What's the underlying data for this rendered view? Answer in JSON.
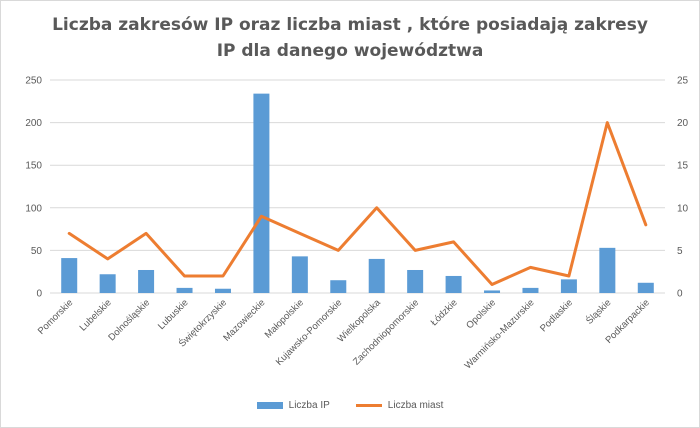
{
  "chart_data": {
    "type": "bar",
    "title_line1": "Liczba zakresów IP oraz liczba miast , które posiadają zakresy",
    "title_line2": "IP dla danego województwa",
    "categories": [
      "Pomorskie",
      "Lubelskie",
      "Dolnośląskie",
      "Lubuskie",
      "Świętokrzyskie",
      "Mazowieckie",
      "Małopolskie",
      "Kujawsko-Pomorskie",
      "Wielkopolska",
      "Zachodniopomorskie",
      "Łódzkie",
      "Opolskie",
      "Warmińsko-Mazurskie",
      "Podlaskie",
      "Śląskie",
      "Podkarpackie"
    ],
    "series": [
      {
        "name": "Liczba IP",
        "type": "bar",
        "axis": "left",
        "color": "#5b9bd5",
        "values": [
          41,
          22,
          27,
          6,
          5,
          234,
          43,
          15,
          40,
          27,
          20,
          3,
          6,
          16,
          53,
          12
        ]
      },
      {
        "name": "Liczba miast",
        "type": "line",
        "axis": "right",
        "color": "#ed7d31",
        "values": [
          7,
          4,
          7,
          2,
          2,
          9,
          7,
          5,
          10,
          5,
          6,
          1,
          3,
          2,
          20,
          8
        ]
      }
    ],
    "ylim_left": [
      0,
      250
    ],
    "yticks_left": [
      "0",
      "50",
      "100",
      "150",
      "200",
      "250"
    ],
    "ylim_right": [
      0,
      25
    ],
    "yticks_right": [
      "0",
      "5",
      "10",
      "15",
      "20",
      "25"
    ],
    "grid": true,
    "legend_position": "bottom"
  }
}
